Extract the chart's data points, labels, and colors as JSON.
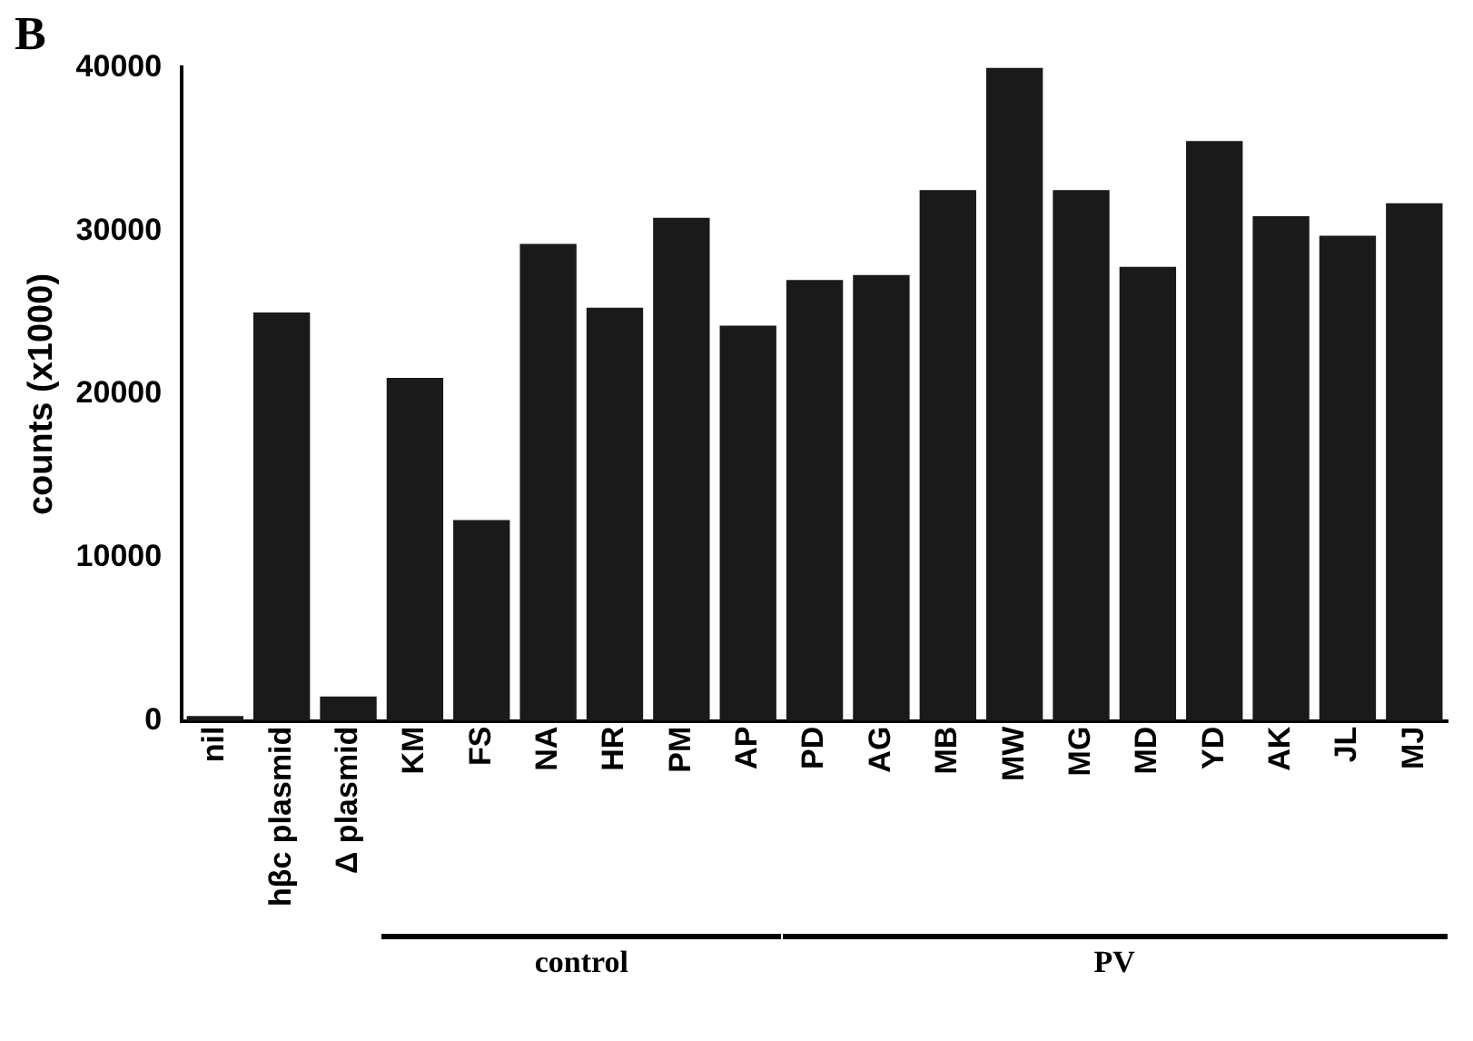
{
  "chart_data": {
    "type": "bar",
    "ylabel": "counts (x1000)",
    "categories": [
      "nil",
      "hβc plasmid",
      "Δ plasmid",
      "KM",
      "FS",
      "NA",
      "HR",
      "PM",
      "AP",
      "PD",
      "AG",
      "MB",
      "MW",
      "MG",
      "MD",
      "YD",
      "AK",
      "JL",
      "MJ"
    ],
    "values": [
      300,
      25000,
      1500,
      21000,
      12300,
      29200,
      25300,
      30800,
      24200,
      27000,
      27300,
      32500,
      40000,
      32500,
      27800,
      35500,
      30900,
      29700,
      31700
    ],
    "color": "#1a1a1a",
    "ylim": [
      0,
      40000
    ],
    "yticks": [
      0,
      10000,
      20000,
      30000,
      40000
    ],
    "grid": false,
    "legend": false,
    "annotations": [
      "B",
      "control",
      "PV"
    ]
  }
}
